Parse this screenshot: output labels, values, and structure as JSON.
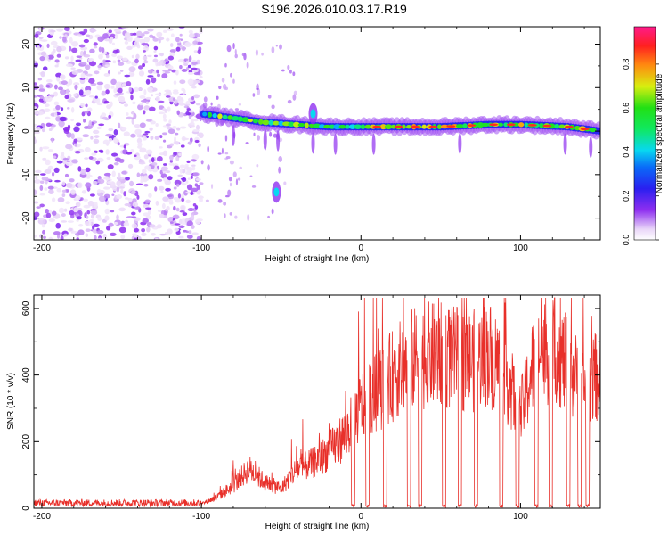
{
  "title": "S196.2026.010.03.17.R19",
  "chart_data": [
    {
      "type": "heatmap",
      "panel": "top",
      "xlabel": "Height of straight line (km)",
      "ylabel": "Frequency (Hz)",
      "xlim": [
        -205,
        150
      ],
      "ylim": [
        -25,
        24
      ],
      "xticks": [
        -200,
        -100,
        0,
        100
      ],
      "yticks": [
        -20,
        -10,
        0,
        10,
        20
      ],
      "noise_region_x": [
        -205,
        -100
      ],
      "ridge": {
        "x": [
          -100,
          -80,
          -60,
          -40,
          -20,
          0,
          20,
          50,
          80,
          100,
          130,
          150
        ],
        "freq": [
          4,
          3,
          2,
          1.5,
          1,
          1,
          1,
          1,
          1.5,
          1.5,
          1,
          0
        ]
      },
      "extra_blobs": [
        {
          "x": -53,
          "freq": -14
        },
        {
          "x": -30,
          "freq": 4
        }
      ],
      "colorbar": {
        "label": "Normalized spectral amplitude",
        "range": [
          0,
          0.97
        ],
        "ticks": [
          0.0,
          0.2,
          0.4,
          0.6,
          0.8
        ],
        "tick_labels": [
          "0.0",
          "0.2",
          "0.4",
          "0.6",
          "0.8"
        ]
      }
    },
    {
      "type": "line",
      "panel": "bottom",
      "xlabel": "Height of straight line (km)",
      "ylabel": "SNR (10 * v/v)",
      "xlim": [
        -205,
        150
      ],
      "ylim": [
        0,
        640
      ],
      "xticks": [
        -200,
        -100,
        0,
        100
      ],
      "yticks": [
        0,
        200,
        400,
        600
      ],
      "color": "#e8302a",
      "envelope": {
        "x": [
          -205,
          -100,
          -90,
          -80,
          -70,
          -60,
          -50,
          -40,
          -30,
          -20,
          -10,
          0,
          10,
          20,
          30,
          40,
          50,
          60,
          70,
          80,
          90,
          100,
          110,
          120,
          130,
          140,
          150
        ],
        "snr": [
          15,
          15,
          40,
          80,
          140,
          90,
          70,
          140,
          160,
          200,
          260,
          360,
          410,
          470,
          520,
          540,
          540,
          530,
          520,
          550,
          480,
          330,
          550,
          560,
          500,
          420,
          480
        ]
      },
      "dropouts_x": [
        -5,
        4,
        15,
        30,
        37,
        52,
        62,
        72,
        88,
        98,
        110,
        119,
        130,
        137,
        142
      ]
    }
  ]
}
